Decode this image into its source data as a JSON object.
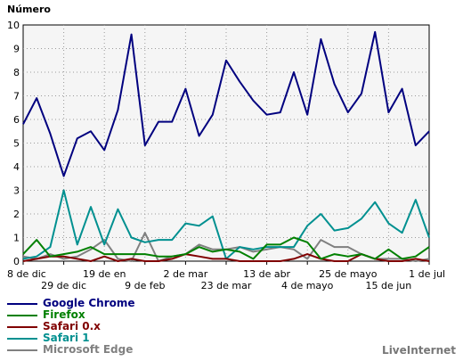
{
  "chart_data": {
    "type": "line",
    "ylabel": "Número",
    "ylim": [
      0,
      10
    ],
    "y_ticks": [
      "0",
      "1",
      "2",
      "3",
      "4",
      "5",
      "6",
      "7",
      "8",
      "9",
      "10"
    ],
    "x_tick_labels": [
      "8 de dic",
      "29 de dic",
      "19 de en",
      "9 de feb",
      "2 de mar",
      "23 de mar",
      "13 de abr",
      "4 de mayo",
      "25 de mayo",
      "15 de jun",
      "1 de jul"
    ],
    "grid": true,
    "legend_position": "bottom",
    "source": "LiveInternet",
    "series": [
      {
        "name": "Google Chrome",
        "color": "#00007f",
        "values": [
          5.8,
          6.9,
          5.4,
          3.6,
          5.2,
          5.5,
          4.7,
          6.4,
          9.6,
          4.9,
          5.9,
          5.9,
          7.3,
          5.3,
          6.2,
          8.5,
          7.6,
          6.8,
          6.2,
          6.3,
          8.0,
          6.2,
          9.4,
          7.5,
          6.3,
          7.1,
          9.7,
          6.3,
          7.3,
          4.9,
          5.5
        ]
      },
      {
        "name": "Firefox",
        "color": "#008000",
        "values": [
          0.3,
          0.9,
          0.2,
          0.3,
          0.4,
          0.6,
          0.3,
          0.3,
          0.3,
          0.3,
          0.2,
          0.2,
          0.3,
          0.6,
          0.4,
          0.5,
          0.4,
          0.1,
          0.7,
          0.7,
          1.0,
          0.8,
          0.1,
          0.3,
          0.2,
          0.3,
          0.1,
          0.5,
          0.1,
          0.2,
          0.6
        ]
      },
      {
        "name": "Safari 0.x",
        "color": "#800000",
        "values": [
          0.0,
          0.1,
          0.2,
          0.2,
          0.1,
          0.0,
          0.2,
          0.0,
          0.1,
          0.0,
          0.0,
          0.1,
          0.3,
          0.2,
          0.1,
          0.1,
          0.0,
          0.0,
          0.0,
          0.0,
          0.1,
          0.3,
          0.1,
          0.0,
          0.0,
          0.3,
          0.1,
          0.0,
          0.0,
          0.1,
          0.0
        ]
      },
      {
        "name": "Safari 1",
        "color": "#009090",
        "values": [
          0.1,
          0.2,
          0.6,
          3.0,
          0.7,
          2.3,
          0.7,
          2.2,
          1.0,
          0.8,
          0.9,
          0.9,
          1.6,
          1.5,
          1.9,
          0.1,
          0.6,
          0.5,
          0.6,
          0.6,
          0.6,
          1.5,
          2.0,
          1.3,
          1.4,
          1.8,
          2.5,
          1.6,
          1.2,
          2.6,
          1.0
        ]
      },
      {
        "name": "Microsoft Edge",
        "color": "#808080",
        "values": [
          0.2,
          0.1,
          0.3,
          0.1,
          0.2,
          0.5,
          0.9,
          0.1,
          0.0,
          1.2,
          0.0,
          0.2,
          0.3,
          0.7,
          0.5,
          0.5,
          0.6,
          0.4,
          0.5,
          0.6,
          0.5,
          0.1,
          0.9,
          0.6,
          0.6,
          0.3,
          0.1,
          0.1,
          0.1,
          0.0,
          0.1
        ]
      }
    ]
  }
}
